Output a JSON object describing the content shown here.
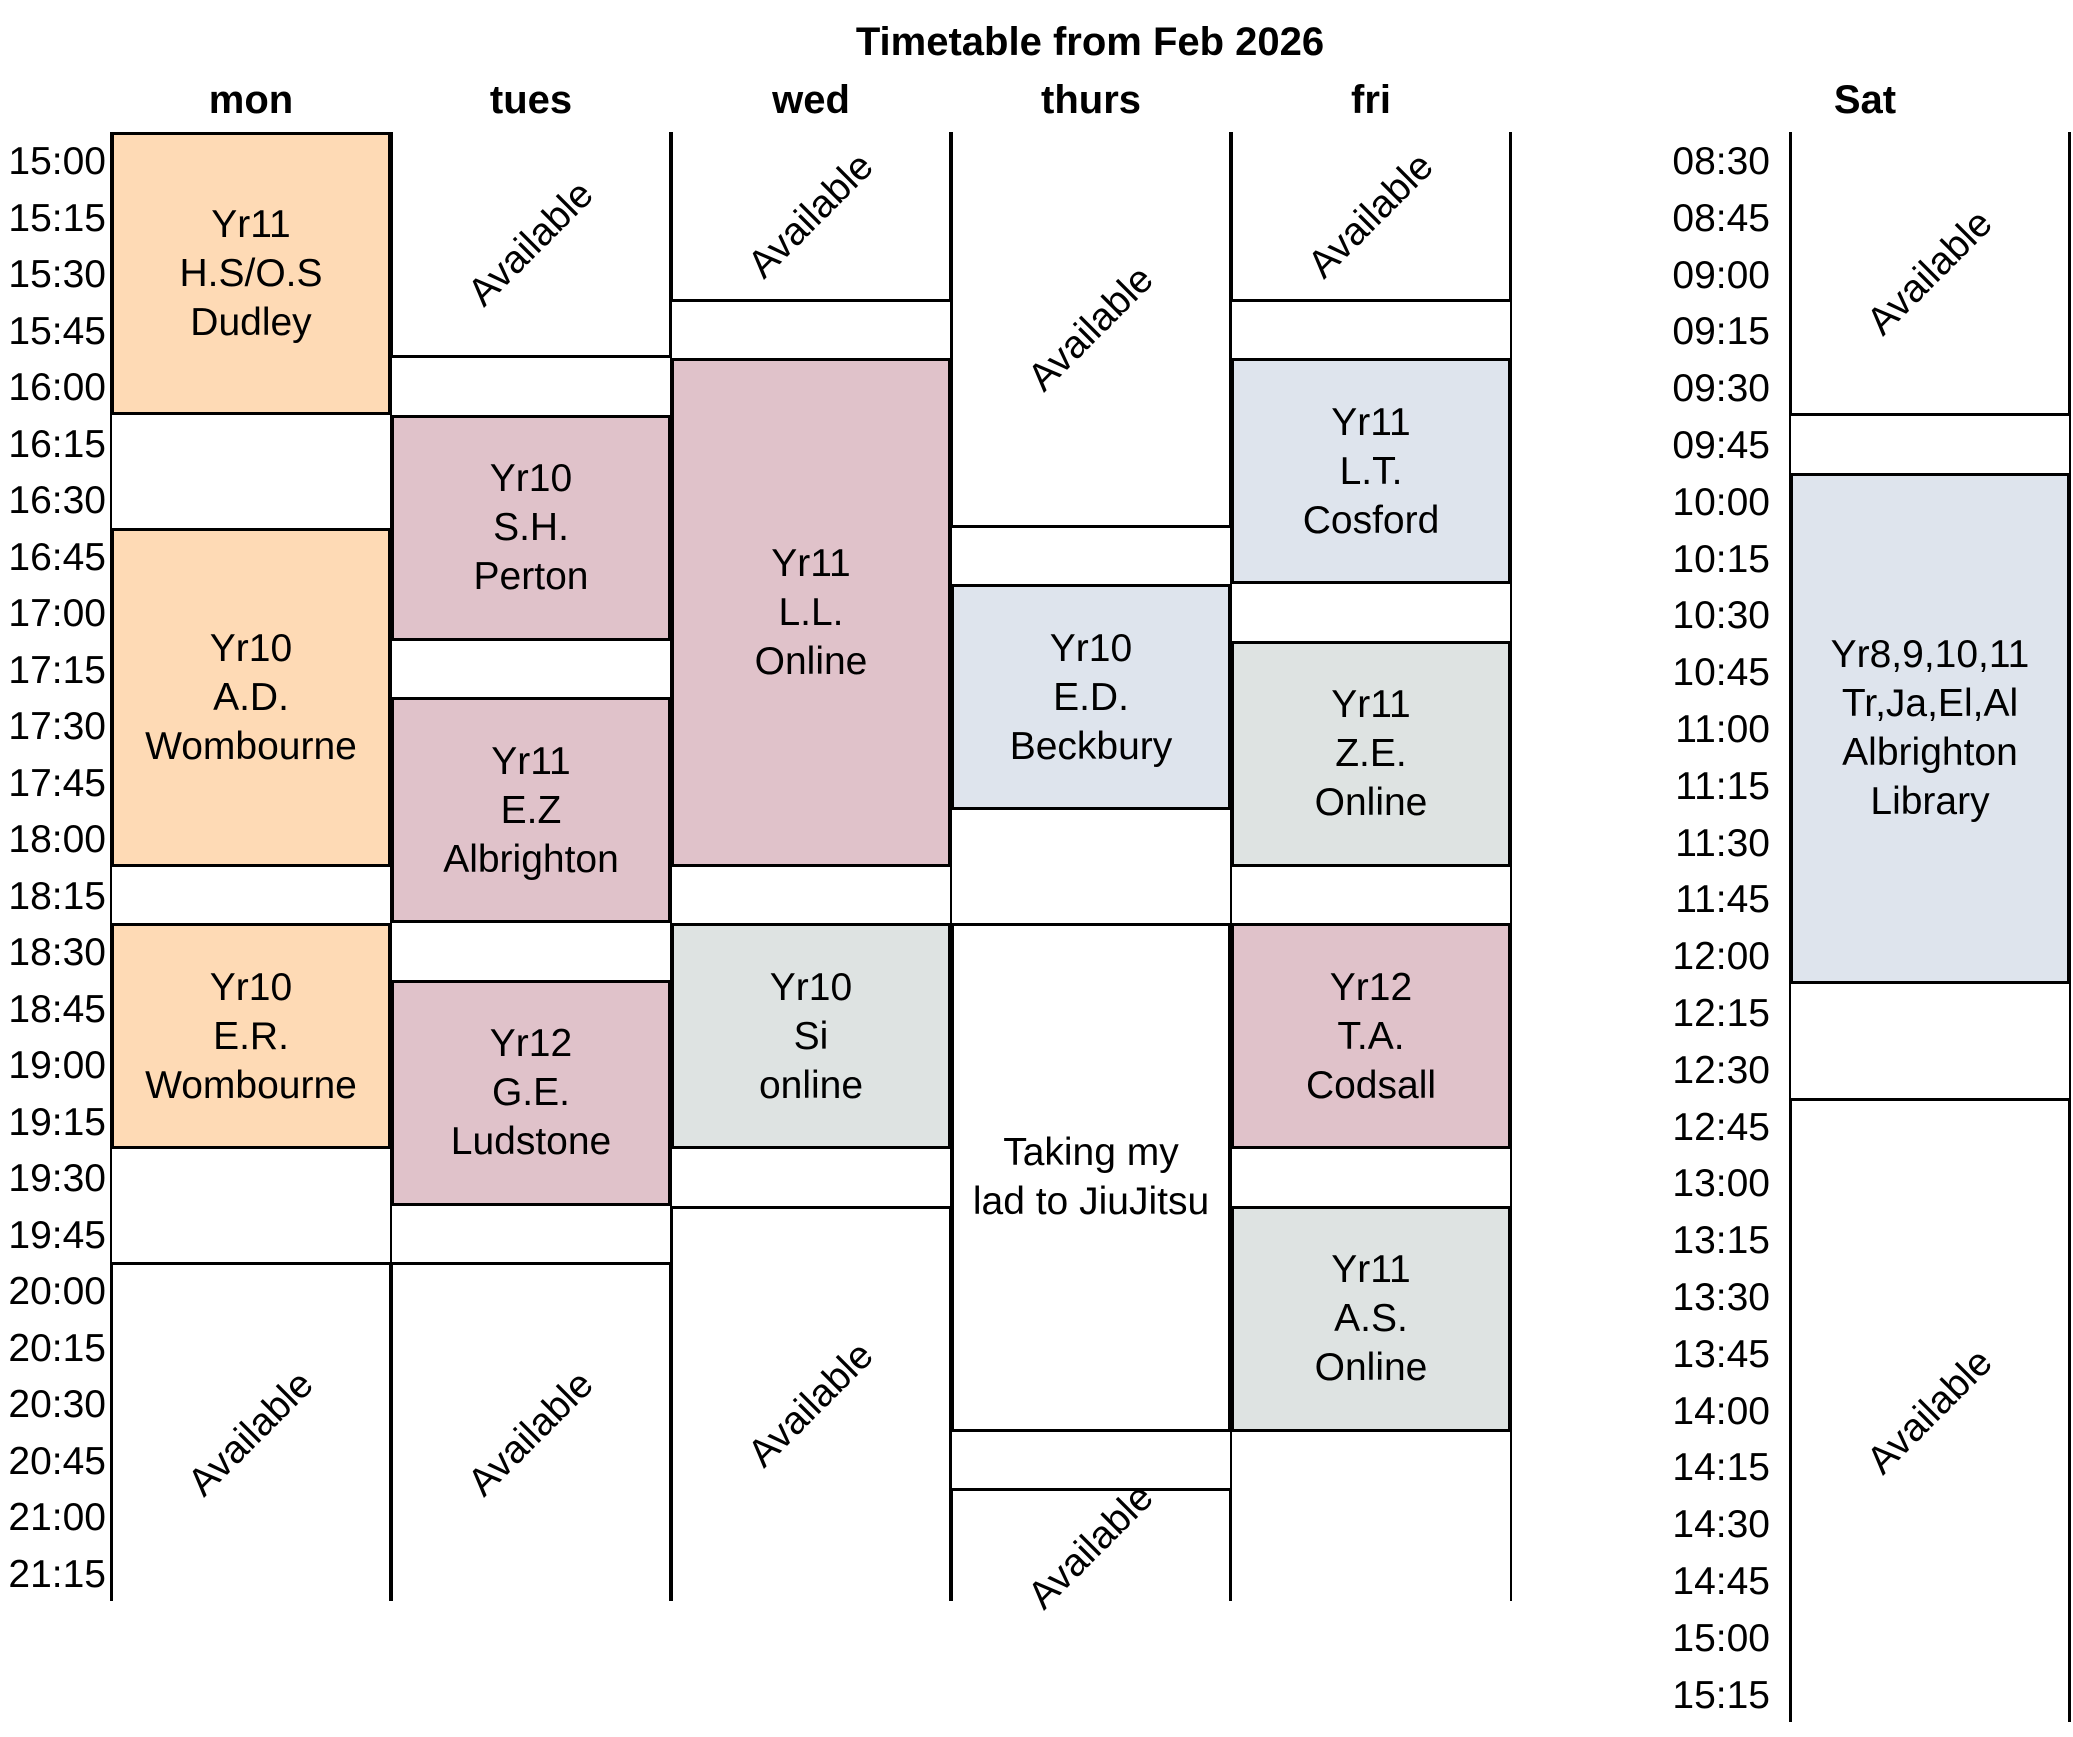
{
  "title": "Timetable from Feb 2026",
  "colors": {
    "orange": "#fedab5",
    "pink": "#e0c2ca",
    "blue": "#dee4ed",
    "grey": "#dee3e2"
  },
  "weekday_times": [
    "15:00",
    "15:15",
    "15:30",
    "15:45",
    "16:00",
    "16:15",
    "16:30",
    "16:45",
    "17:00",
    "17:15",
    "17:30",
    "17:45",
    "18:00",
    "18:15",
    "18:30",
    "18:45",
    "19:00",
    "19:15",
    "19:30",
    "19:45",
    "20:00",
    "20:15",
    "20:30",
    "20:45",
    "21:00",
    "21:15"
  ],
  "saturday_times": [
    "08:30",
    "08:45",
    "09:00",
    "09:15",
    "09:30",
    "09:45",
    "10:00",
    "10:15",
    "10:30",
    "10:45",
    "11:00",
    "11:15",
    "11:30",
    "11:45",
    "12:00",
    "12:15",
    "12:30",
    "12:45",
    "13:00",
    "13:15",
    "13:30",
    "13:45",
    "14:00",
    "14:15",
    "14:30",
    "14:45",
    "15:00",
    "15:15"
  ],
  "days": [
    {
      "name": "mon",
      "events": [
        {
          "start": "15:00",
          "end": "16:15",
          "text": "Yr11\nH.S/O.S\nDudley",
          "color": "orange"
        },
        {
          "start": "16:45",
          "end": "18:15",
          "text": "Yr10\nA.D.\nWombourne",
          "color": "orange"
        },
        {
          "start": "18:30",
          "end": "19:30",
          "text": "Yr10\nE.R.\nWombourne",
          "color": "orange"
        },
        {
          "start": "20:00",
          "end": "21:30",
          "text": "Available",
          "available": true
        }
      ]
    },
    {
      "name": "tues",
      "events": [
        {
          "start": "15:00",
          "end": "16:00",
          "text": "Available",
          "available": true
        },
        {
          "start": "16:15",
          "end": "17:15",
          "text": "Yr10\nS.H.\nPerton",
          "color": "pink"
        },
        {
          "start": "17:30",
          "end": "18:30",
          "text": "Yr11\nE.Z\nAlbrighton",
          "color": "pink"
        },
        {
          "start": "18:45",
          "end": "19:45",
          "text": "Yr12\nG.E.\nLudstone",
          "color": "pink"
        },
        {
          "start": "20:00",
          "end": "21:30",
          "text": "Available",
          "available": true
        }
      ]
    },
    {
      "name": "wed",
      "events": [
        {
          "start": "15:00",
          "end": "15:45",
          "text": "Available",
          "available": true
        },
        {
          "start": "16:00",
          "end": "18:15",
          "text": "Yr11\nL.L.\nOnline",
          "color": "pink"
        },
        {
          "start": "18:30",
          "end": "19:30",
          "text": "Yr10\nSi\nonline",
          "color": "grey"
        },
        {
          "start": "19:45",
          "end": "21:30",
          "text": "Available",
          "available": true
        }
      ]
    },
    {
      "name": "thurs",
      "events": [
        {
          "start": "15:00",
          "end": "16:45",
          "text": "Available",
          "available": true
        },
        {
          "start": "17:00",
          "end": "18:00",
          "text": "Yr10\nE.D.\nBeckbury",
          "color": "blue"
        },
        {
          "start": "18:30",
          "end": "20:45",
          "text": "Taking my\nlad to JiuJitsu",
          "color": "white"
        },
        {
          "start": "21:00",
          "end": "21:30",
          "text": "Available",
          "available": true
        }
      ]
    },
    {
      "name": "fri",
      "events": [
        {
          "start": "15:00",
          "end": "15:45",
          "text": "Available",
          "available": true
        },
        {
          "start": "16:00",
          "end": "17:00",
          "text": "Yr11\nL.T.\nCosford",
          "color": "blue"
        },
        {
          "start": "17:15",
          "end": "18:15",
          "text": "Yr11\nZ.E.\nOnline",
          "color": "grey"
        },
        {
          "start": "18:30",
          "end": "19:30",
          "text": "Yr12\nT.A.\nCodsall",
          "color": "pink"
        },
        {
          "start": "19:45",
          "end": "20:45",
          "text": "Yr11\nA.S.\nOnline",
          "color": "grey"
        }
      ]
    }
  ],
  "saturday": {
    "name": "Sat",
    "events": [
      {
        "start": "08:30",
        "end": "09:45",
        "text": "Available",
        "available": true
      },
      {
        "start": "10:00",
        "end": "12:15",
        "text": "Yr8,9,10,11\nTr,Ja,El,Al\nAlbrighton\nLibrary",
        "color": "blue"
      },
      {
        "start": "12:45",
        "end": "15:30",
        "text": "Available",
        "available": true
      }
    ]
  }
}
